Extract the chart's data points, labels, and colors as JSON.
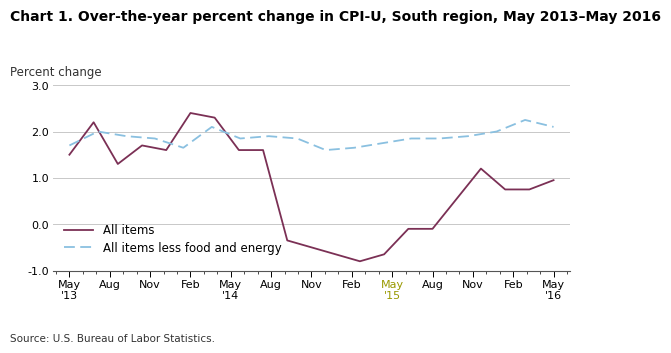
{
  "title": "Chart 1. Over-the-year percent change in CPI-U, South region, May 2013–May 2016",
  "ylabel": "Percent change",
  "source": "Source: U.S. Bureau of Labor Statistics.",
  "ylim": [
    -1.0,
    3.0
  ],
  "yticks": [
    -1.0,
    0.0,
    1.0,
    2.0,
    3.0
  ],
  "tick_labels": [
    "May\n'13",
    "Aug",
    "Nov",
    "Feb",
    "May\n'14",
    "Aug",
    "Nov",
    "Feb",
    "May\n'15",
    "Aug",
    "Nov",
    "Feb",
    "May\n'16"
  ],
  "all_items": [
    1.5,
    2.2,
    1.3,
    1.7,
    1.6,
    2.4,
    2.3,
    1.6,
    1.6,
    -0.35,
    -0.5,
    -0.65,
    -0.8,
    -0.65,
    -0.1,
    -0.1,
    0.55,
    1.2,
    0.75,
    0.75,
    0.95
  ],
  "all_items_less": [
    1.7,
    2.0,
    1.9,
    1.85,
    1.65,
    2.1,
    1.85,
    1.9,
    1.85,
    1.6,
    1.65,
    1.75,
    1.85,
    1.85,
    1.9,
    2.0,
    2.25,
    2.1
  ],
  "all_items_color": "#7B3055",
  "all_items_less_color": "#8AC0E0",
  "background_color": "#ffffff",
  "grid_color": "#c8c8c8",
  "title_fontsize": 10,
  "label_fontsize": 8.5,
  "tick_fontsize": 8,
  "legend_fontsize": 8.5,
  "source_fontsize": 7.5,
  "may15_color": "#999900"
}
